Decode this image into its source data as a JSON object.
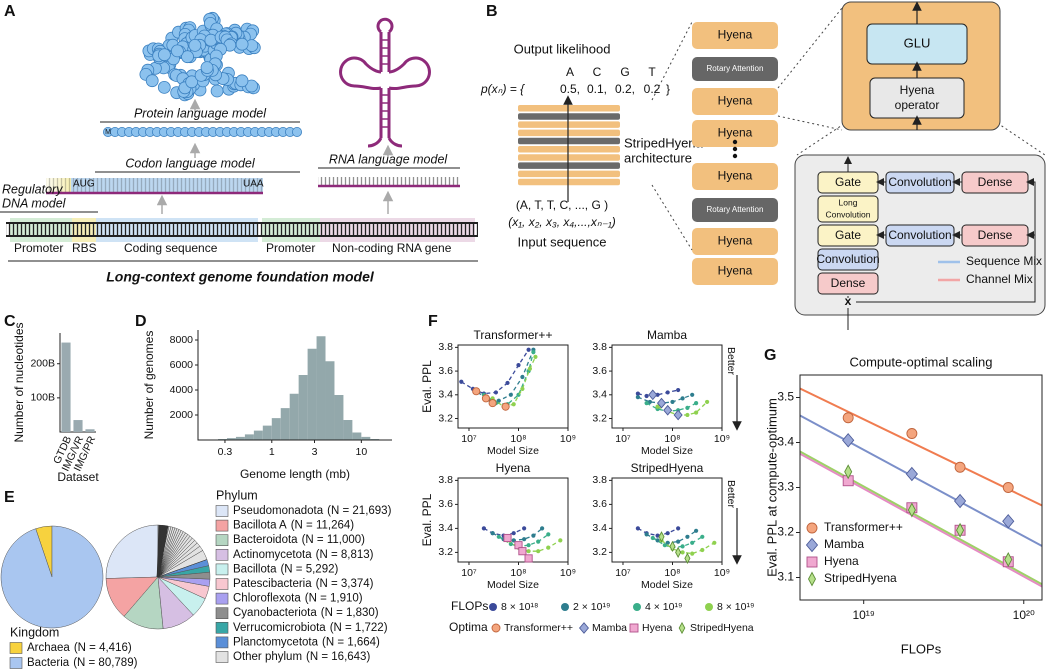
{
  "panel_labels": [
    "A",
    "B",
    "C",
    "D",
    "E",
    "F",
    "G"
  ],
  "panel_a": {
    "protein_model": "Protein language model",
    "start_residue": "M",
    "codon_model": "Codon language model",
    "start_codon": "AUG",
    "stop_codon": "UAA",
    "rna_model": "RNA language model",
    "regulatory_model": [
      "Regulatory",
      "DNA model"
    ],
    "regions": [
      "Promoter",
      "RBS",
      "Coding sequence",
      "Promoter",
      "Non-coding RNA gene"
    ],
    "foundation_model": "Long-context genome foundation model"
  },
  "panel_b": {
    "output_title": "Output likelihood",
    "output_tokens": [
      "A",
      "C",
      "G",
      "T"
    ],
    "likelihood_label": "p(xₙ) = {",
    "output_probs": [
      "0.5,",
      "0.1,",
      "0.2,",
      "0.2"
    ],
    "close_brace": "}",
    "architecture": [
      "StripedHyena",
      "architecture"
    ],
    "input_tokens": "(A, T, T, C, ..., G )",
    "input_positions": "(x₁, x₂, x₃, x₄,...,xₙ₋₁)",
    "input_title": "Input sequence",
    "stack": [
      "Hyena",
      "Rotary Attention",
      "Hyena",
      "Hyena",
      "Hyena",
      "Rotary Attention",
      "Hyena",
      "Hyena"
    ],
    "glu": "GLU",
    "operator": [
      "Hyena",
      "operator"
    ],
    "detail": {
      "gate": "Gate",
      "convolution": "Convolution",
      "dense": "Dense",
      "long_convolution": [
        "Long",
        "Convolution"
      ],
      "gate_2": "Gate",
      "convolution_2": "Convolution",
      "dense_2": "Dense",
      "convolution_3": "Convolution",
      "dense_3": "Dense",
      "multiply": "x",
      "legend": [
        "Sequence Mix",
        "Channel Mix"
      ]
    }
  },
  "chart_data": [
    {
      "type": "bar",
      "categories": [
        "GTDB",
        "IMG/VR",
        "IMG/PR"
      ],
      "values": [
        262,
        35,
        8
      ],
      "color": "#9aaab0",
      "ylabel": "Number of nucleotides",
      "xlabel": "Dataset",
      "ylim": [
        0,
        290
      ],
      "yticks": [
        {
          "value": 100,
          "label": "100B"
        },
        {
          "value": 200,
          "label": "200B"
        }
      ]
    },
    {
      "type": "histogram",
      "bins": [
        0.158,
        0.2,
        0.251,
        0.316,
        0.398,
        0.501,
        0.631,
        0.794,
        1,
        1.259,
        1.585,
        1.995,
        2.512,
        3.162,
        3.981,
        5.012,
        6.31,
        7.943,
        10,
        12.59,
        15.85,
        19.95
      ],
      "counts": [
        20,
        40,
        80,
        150,
        250,
        450,
        750,
        1150,
        1750,
        2550,
        3700,
        5200,
        7300,
        8300,
        6300,
        3600,
        1600,
        600,
        250,
        80,
        20
      ],
      "color": "#93a8ab",
      "xlabel": "Genome length (mb)",
      "ylabel": "Number of genomes",
      "xscale": "log",
      "xlim": [
        0.15,
        22
      ],
      "xticks": [
        0.3,
        1,
        3,
        10
      ],
      "ylim": [
        0,
        8800
      ],
      "yticks": [
        2000,
        4000,
        6000,
        8000
      ]
    },
    {
      "type": "pie",
      "legend_title": "Kingdom",
      "categories": [
        "Archaea",
        "Bacteria"
      ],
      "values": [
        4416,
        80789
      ],
      "value_labels": [
        "(N = 4,416)",
        "(N = 80,789)"
      ],
      "colors": [
        "#f7d23e",
        "#a9c6f0"
      ]
    },
    {
      "type": "pie",
      "legend_title": "Phylum",
      "categories": [
        "Pseudomonadota",
        "Bacillota A",
        "Bacteroidota",
        "Actinomycetota",
        "Bacillota",
        "Patescibacteria",
        "Chloroflexota",
        "Cyanobacteriota",
        "Verrucomicrobiota",
        "Planctomycetota",
        "Other phylum"
      ],
      "values": [
        21693,
        11264,
        11000,
        8813,
        5292,
        3374,
        1910,
        1830,
        1722,
        1664,
        16643
      ],
      "value_labels": [
        "(N = 21,693)",
        "(N = 11,264)",
        "(N = 11,000)",
        "(N = 8,813)",
        "(N = 5,292)",
        "(N = 3,374)",
        "(N = 1,910)",
        "(N = 1,830)",
        "(N = 1,722)",
        "(N = 1,664)",
        "(N = 16,643)"
      ],
      "colors": [
        "#dce6f7",
        "#f4a3a3",
        "#b5d6c2",
        "#d6bfe3",
        "#c8f0ee",
        "#f8c7d0",
        "#a9a0f0",
        "#8e8e8e",
        "#38a6a6",
        "#5b8fd8",
        "#e2e2e2"
      ]
    },
    {
      "type": "line_grid",
      "xlabel": "Model Size",
      "ylabel": "Eval. PPL",
      "annotation": "Better",
      "xscale": "log",
      "xlim": [
        6000000.0,
        1000000000.0
      ],
      "xticks": [
        {
          "value": 10000000.0,
          "label": "10⁷"
        },
        {
          "value": 100000000.0,
          "label": "10⁸"
        },
        {
          "value": 1000000000.0,
          "label": "10⁹"
        }
      ],
      "ylim": [
        3.12,
        3.82
      ],
      "yticks": [
        3.2,
        3.4,
        3.6,
        3.8
      ],
      "legend_title": "FLOPs",
      "legend": [
        {
          "name": "8 × 10¹⁸",
          "color": "#3b4a9a"
        },
        {
          "name": "2 × 10¹⁹",
          "color": "#2e7d8e"
        },
        {
          "name": "4 × 10¹⁹",
          "color": "#3aae8a"
        },
        {
          "name": "8 × 10¹⁹",
          "color": "#8fd14f"
        }
      ],
      "optima_title": "Optima",
      "optima_legend": [
        {
          "name": "Transformer++",
          "color": "#f4a57e",
          "marker": "circle"
        },
        {
          "name": "Mamba",
          "color": "#9aa8d8",
          "marker": "diamond"
        },
        {
          "name": "Hyena",
          "color": "#f0a8d0",
          "marker": "square"
        },
        {
          "name": "StripedHyena",
          "color": "#b6e08a",
          "marker": "thin-diamond"
        }
      ],
      "subplots": [
        {
          "title": "Transformer++",
          "series": [
            {
              "x": [
                7000000.0,
                12000000.0,
                20000000.0,
                35000000.0,
                60000000.0,
                100000000.0,
                160000000.0
              ],
              "values": [
                3.51,
                3.45,
                3.41,
                3.42,
                3.5,
                3.65,
                3.78
              ]
            },
            {
              "x": [
                15000000.0,
                25000000.0,
                40000000.0,
                70000000.0,
                120000000.0,
                200000000.0
              ],
              "values": [
                3.42,
                3.36,
                3.35,
                3.4,
                3.55,
                3.78
              ]
            },
            {
              "x": [
                20000000.0,
                35000000.0,
                60000000.0,
                100000000.0,
                160000000.0,
                200000000.0
              ],
              "values": [
                3.4,
                3.33,
                3.32,
                3.4,
                3.6,
                3.76
              ]
            },
            {
              "x": [
                30000000.0,
                50000000.0,
                80000000.0,
                120000000.0,
                170000000.0,
                220000000.0
              ],
              "values": [
                3.37,
                3.3,
                3.32,
                3.45,
                3.62,
                3.72
              ]
            }
          ],
          "optima": {
            "x": [
              14000000.0,
              22000000.0,
              30000000.0,
              55000000.0
            ],
            "values": [
              3.43,
              3.37,
              3.33,
              3.3
            ]
          }
        },
        {
          "title": "Mamba",
          "series": [
            {
              "x": [
                20000000.0,
                30000000.0,
                50000000.0,
                80000000.0,
                130000000.0
              ],
              "values": [
                3.41,
                3.39,
                3.4,
                3.42,
                3.44
              ]
            },
            {
              "x": [
                20000000.0,
                35000000.0,
                60000000.0,
                100000000.0,
                160000000.0,
                250000000.0
              ],
              "values": [
                3.38,
                3.34,
                3.33,
                3.34,
                3.37,
                3.4
              ]
            },
            {
              "x": [
                30000000.0,
                50000000.0,
                80000000.0,
                130000000.0,
                200000000.0,
                300000000.0
              ],
              "values": [
                3.33,
                3.28,
                3.26,
                3.27,
                3.29,
                3.33
              ]
            },
            {
              "x": [
                50000000.0,
                80000000.0,
                130000000.0,
                200000000.0,
                300000000.0,
                500000000.0
              ],
              "values": [
                3.3,
                3.26,
                3.23,
                3.23,
                3.25,
                3.34
              ]
            }
          ],
          "optima": {
            "x": [
              40000000.0,
              60000000.0,
              80000000.0,
              130000000.0
            ],
            "values": [
              3.4,
              3.33,
              3.27,
              3.23
            ]
          }
        },
        {
          "title": "Hyena",
          "series": [
            {
              "x": [
                20000000.0,
                30000000.0,
                50000000.0,
                80000000.0,
                130000000.0
              ],
              "values": [
                3.4,
                3.36,
                3.34,
                3.36,
                3.4
              ]
            },
            {
              "x": [
                30000000.0,
                50000000.0,
                80000000.0,
                130000000.0,
                200000000.0,
                300000000.0
              ],
              "values": [
                3.36,
                3.31,
                3.3,
                3.31,
                3.34,
                3.4
              ]
            },
            {
              "x": [
                40000000.0,
                70000000.0,
                100000000.0,
                160000000.0,
                250000000.0,
                400000000.0
              ],
              "values": [
                3.33,
                3.27,
                3.25,
                3.26,
                3.29,
                3.35
              ]
            },
            {
              "x": [
                60000000.0,
                100000000.0,
                160000000.0,
                250000000.0,
                400000000.0,
                700000000.0
              ],
              "values": [
                3.3,
                3.24,
                3.21,
                3.21,
                3.24,
                3.3
              ]
            }
          ],
          "optima": {
            "x": [
              60000000.0,
              100000000.0,
              120000000.0,
              160000000.0
            ],
            "values": [
              3.32,
              3.26,
              3.21,
              3.15
            ]
          }
        },
        {
          "title": "StripedHyena",
          "series": [
            {
              "x": [
                20000000.0,
                30000000.0,
                50000000.0,
                80000000.0,
                130000000.0
              ],
              "values": [
                3.4,
                3.36,
                3.34,
                3.36,
                3.4
              ]
            },
            {
              "x": [
                30000000.0,
                50000000.0,
                80000000.0,
                130000000.0,
                200000000.0,
                300000000.0
              ],
              "values": [
                3.35,
                3.3,
                3.28,
                3.29,
                3.33,
                3.38
              ]
            },
            {
              "x": [
                40000000.0,
                70000000.0,
                100000000.0,
                160000000.0,
                250000000.0,
                400000000.0
              ],
              "values": [
                3.32,
                3.26,
                3.24,
                3.25,
                3.28,
                3.33
              ]
            },
            {
              "x": [
                60000000.0,
                100000000.0,
                160000000.0,
                250000000.0,
                400000000.0,
                700000000.0
              ],
              "values": [
                3.3,
                3.23,
                3.2,
                3.19,
                3.22,
                3.28
              ]
            }
          ],
          "optima": {
            "x": [
              60000000.0,
              100000000.0,
              130000000.0,
              200000000.0
            ],
            "values": [
              3.33,
              3.25,
              3.2,
              3.15
            ]
          }
        }
      ]
    },
    {
      "type": "scatter",
      "title": "Compute-optimal scaling",
      "xlabel": "FLOPs",
      "ylabel": "Eval. PPL at compute-optimum",
      "xscale": "log",
      "xlim": [
        4e+18,
        1.3e+20
      ],
      "xticks": [
        {
          "value": 1e+19,
          "label": "10¹⁹"
        },
        {
          "value": 1e+20,
          "label": "10²⁰"
        }
      ],
      "ylim": [
        3.05,
        3.55
      ],
      "yticks": [
        3.1,
        3.2,
        3.3,
        3.4,
        3.5
      ],
      "legend": "lower left",
      "x": [
        8e+18,
        2e+19,
        4e+19,
        8e+19
      ],
      "fit_x": [
        4e+18,
        1.3e+20
      ],
      "series": [
        {
          "name": "Transformer++",
          "color": "#f4a57e",
          "line_color": "#f07c50",
          "marker": "circle",
          "values": [
            3.455,
            3.42,
            3.345,
            3.3
          ],
          "fit_values": [
            3.52,
            3.26
          ]
        },
        {
          "name": "Mamba",
          "color": "#9aa8d8",
          "line_color": "#7b8fc9",
          "marker": "diamond",
          "values": [
            3.405,
            3.33,
            3.27,
            3.225
          ],
          "fit_values": [
            3.46,
            3.17
          ]
        },
        {
          "name": "Hyena",
          "color": "#f0a8d0",
          "line_color": "#e58ac4",
          "marker": "square",
          "values": [
            3.315,
            3.255,
            3.205,
            3.135
          ],
          "fit_values": [
            3.375,
            3.08
          ]
        },
        {
          "name": "StripedHyena",
          "color": "#b6e08a",
          "line_color": "#9ed067",
          "marker": "thin-diamond",
          "values": [
            3.335,
            3.25,
            3.205,
            3.14
          ],
          "fit_values": [
            3.38,
            3.085
          ]
        }
      ]
    }
  ]
}
